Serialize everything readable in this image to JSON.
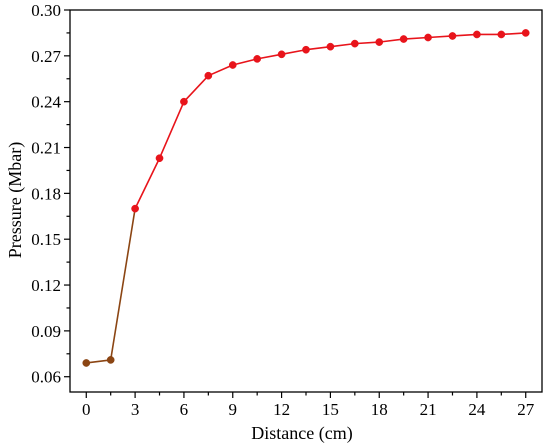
{
  "chart_data": {
    "type": "line",
    "xlabel": "Distance (cm)",
    "ylabel": "Pressure (Mbar)",
    "xlim": [
      -1,
      28
    ],
    "ylim": [
      0.05,
      0.3
    ],
    "x_ticks": [
      0,
      3,
      6,
      9,
      12,
      15,
      18,
      21,
      24,
      27
    ],
    "y_ticks": [
      0.06,
      0.09,
      0.12,
      0.15,
      0.18,
      0.21,
      0.24,
      0.27,
      0.3
    ],
    "x_tick_labels": [
      "0",
      "3",
      "6",
      "9",
      "12",
      "15",
      "18",
      "21",
      "24",
      "27"
    ],
    "y_tick_labels": [
      "0.06",
      "0.09",
      "0.12",
      "0.15",
      "0.18",
      "0.21",
      "0.24",
      "0.27",
      "0.30"
    ],
    "grid": false,
    "legend": "none",
    "series": [
      {
        "x": [
          0,
          1.5
        ],
        "values": [
          0.069,
          0.071
        ],
        "color": "#8b4513",
        "marker": "circle"
      },
      {
        "x": [
          1.5,
          3
        ],
        "values": [
          0.071,
          0.17
        ],
        "color": "#8b4513",
        "marker": "none"
      },
      {
        "x": [
          3,
          4.5,
          6,
          7.5,
          9,
          10.5,
          12,
          13.5,
          15,
          16.5,
          18,
          19.5,
          21,
          22.5,
          24,
          25.5,
          27
        ],
        "values": [
          0.17,
          0.203,
          0.24,
          0.257,
          0.264,
          0.268,
          0.271,
          0.274,
          0.276,
          0.278,
          0.279,
          0.281,
          0.282,
          0.283,
          0.284,
          0.284,
          0.285
        ],
        "color": "#e8141b",
        "marker": "circle"
      }
    ]
  }
}
